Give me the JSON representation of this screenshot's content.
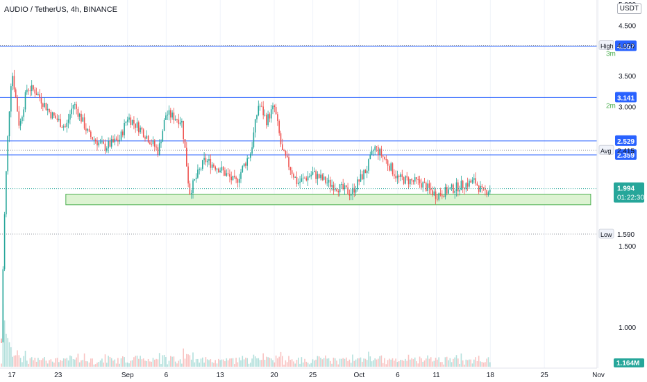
{
  "header": {
    "title": "AUDIO / TetherUS, 4h, BINANCE",
    "unit": "USDT"
  },
  "colors": {
    "up": "#26a69a",
    "down": "#ef5350",
    "line": "#2962ff",
    "zone_fill": "#d4f0c7",
    "zone_border": "#4caf50",
    "price_badge": "#26a69a"
  },
  "price_axis": {
    "ticks": [
      "5.000",
      "4.500",
      "3.500",
      "3.000",
      "1.500",
      "1.000"
    ],
    "high": {
      "label": "High",
      "value": "4.070"
    },
    "low": {
      "label": "Low",
      "value": "1.590"
    },
    "avg": {
      "label": "Avg",
      "value": "2.415"
    },
    "current_price": "1.994",
    "countdown": "01:22:30",
    "volume_label": "1.164M",
    "partial_3m": "3m",
    "partial_2m": "2m"
  },
  "time_axis": {
    "ticks": [
      "17",
      "23",
      "Sep",
      "6",
      "13",
      "20",
      "25",
      "Oct",
      "6",
      "11",
      "18",
      "25",
      "Nov"
    ]
  },
  "chart_data": {
    "type": "candlestick",
    "title": "AUDIO / TetherUS, 4h, BINANCE",
    "y_axis": {
      "min": 1.0,
      "max": 5.0,
      "scale": "log"
    },
    "horizontal_levels": [
      {
        "value": 4.057,
        "label": "4.057"
      },
      {
        "value": 3.141,
        "label": "3.141"
      },
      {
        "value": 2.529,
        "label": "2.529"
      },
      {
        "value": 2.359,
        "label": "2.359"
      }
    ],
    "support_zone": {
      "from": 1.84,
      "to": 1.94,
      "start": "Aug 24",
      "end": "Oct 31"
    },
    "price_path": [
      [
        "Aug 16",
        1.62
      ],
      [
        "Aug 17",
        3.6
      ],
      [
        "Aug 18",
        2.7
      ],
      [
        "Aug 19",
        3.3
      ],
      [
        "Aug 20",
        3.25
      ],
      [
        "Aug 22",
        2.9
      ],
      [
        "Aug 24",
        2.7
      ],
      [
        "Aug 25",
        3.05
      ],
      [
        "Aug 27",
        2.6
      ],
      [
        "Aug 29",
        2.45
      ],
      [
        "Aug 31",
        2.55
      ],
      [
        "Sep 1",
        2.85
      ],
      [
        "Sep 3",
        2.65
      ],
      [
        "Sep 5",
        2.4
      ],
      [
        "Sep 6",
        2.9
      ],
      [
        "Sep 8",
        2.8
      ],
      [
        "Sep 9",
        1.95
      ],
      [
        "Sep 11",
        2.3
      ],
      [
        "Sep 13",
        2.2
      ],
      [
        "Sep 15",
        2.05
      ],
      [
        "Sep 17",
        2.4
      ],
      [
        "Sep 18",
        3.05
      ],
      [
        "Sep 19",
        2.8
      ],
      [
        "Sep 20",
        3.0
      ],
      [
        "Sep 21",
        2.4
      ],
      [
        "Sep 23",
        2.05
      ],
      [
        "Sep 25",
        2.15
      ],
      [
        "Sep 27",
        2.05
      ],
      [
        "Sep 30",
        1.95
      ],
      [
        "Oct 2",
        2.2
      ],
      [
        "Oct 3",
        2.45
      ],
      [
        "Oct 4",
        2.35
      ],
      [
        "Oct 6",
        2.1
      ],
      [
        "Oct 9",
        2.05
      ],
      [
        "Oct 11",
        1.93
      ],
      [
        "Oct 14",
        2.02
      ],
      [
        "Oct 16",
        2.07
      ],
      [
        "Oct 17",
        1.95
      ],
      [
        "Oct 18",
        1.994
      ]
    ]
  }
}
